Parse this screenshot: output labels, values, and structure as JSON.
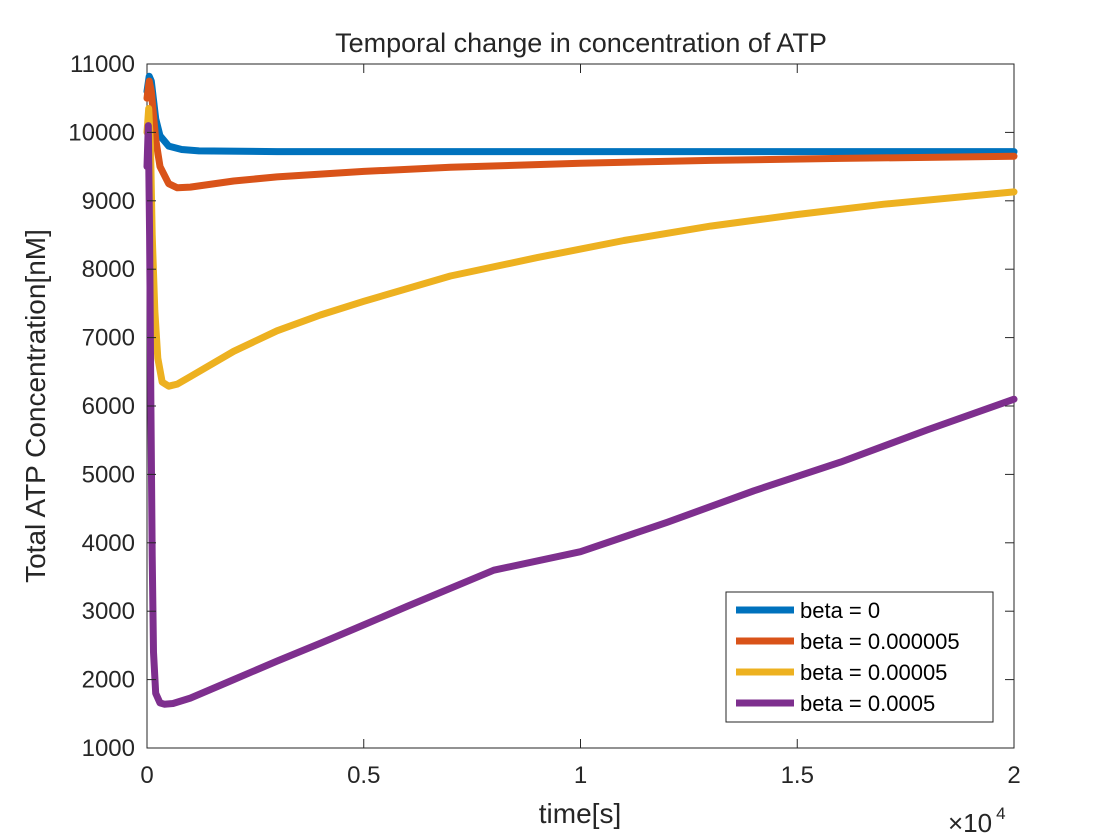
{
  "chart_data": {
    "type": "line",
    "title": "Temporal change in concentration of ATP",
    "xlabel": "time[s]",
    "ylabel": "Total ATP Concentration[nM]",
    "x_multiplier": "×10",
    "x_multiplier_exp": "4",
    "xlim": [
      0,
      2
    ],
    "ylim": [
      1000,
      11000
    ],
    "xticks": [
      0,
      0.5,
      1,
      1.5,
      2
    ],
    "xtick_labels": [
      "0",
      "0.5",
      "1",
      "1.5",
      "2"
    ],
    "yticks": [
      1000,
      2000,
      3000,
      4000,
      5000,
      6000,
      7000,
      8000,
      9000,
      10000,
      11000
    ],
    "ytick_labels": [
      "1000",
      "2000",
      "3000",
      "4000",
      "5000",
      "6000",
      "7000",
      "8000",
      "9000",
      "10000",
      "11000"
    ],
    "grid": false,
    "legend_position": "bottom-right",
    "series": [
      {
        "name": "beta = 0",
        "color": "#0072BD",
        "points": [
          [
            0,
            10600
          ],
          [
            0.005,
            10820
          ],
          [
            0.01,
            10750
          ],
          [
            0.02,
            10200
          ],
          [
            0.03,
            9950
          ],
          [
            0.05,
            9800
          ],
          [
            0.08,
            9750
          ],
          [
            0.12,
            9730
          ],
          [
            0.3,
            9720
          ],
          [
            0.6,
            9720
          ],
          [
            1.0,
            9720
          ],
          [
            1.5,
            9720
          ],
          [
            2.0,
            9720
          ]
        ]
      },
      {
        "name": "beta = 0.000005",
        "color": "#D95319",
        "points": [
          [
            0,
            10500
          ],
          [
            0.005,
            10750
          ],
          [
            0.01,
            10600
          ],
          [
            0.02,
            9900
          ],
          [
            0.03,
            9500
          ],
          [
            0.05,
            9250
          ],
          [
            0.07,
            9190
          ],
          [
            0.1,
            9200
          ],
          [
            0.2,
            9290
          ],
          [
            0.3,
            9350
          ],
          [
            0.5,
            9430
          ],
          [
            0.7,
            9490
          ],
          [
            1.0,
            9550
          ],
          [
            1.3,
            9590
          ],
          [
            1.6,
            9620
          ],
          [
            2.0,
            9650
          ]
        ]
      },
      {
        "name": "beta = 0.00005",
        "color": "#EDB120",
        "points": [
          [
            0,
            10000
          ],
          [
            0.004,
            10350
          ],
          [
            0.008,
            9800
          ],
          [
            0.012,
            8500
          ],
          [
            0.018,
            7400
          ],
          [
            0.025,
            6700
          ],
          [
            0.035,
            6350
          ],
          [
            0.05,
            6290
          ],
          [
            0.07,
            6320
          ],
          [
            0.1,
            6430
          ],
          [
            0.2,
            6800
          ],
          [
            0.3,
            7100
          ],
          [
            0.4,
            7330
          ],
          [
            0.5,
            7530
          ],
          [
            0.7,
            7900
          ],
          [
            0.9,
            8170
          ],
          [
            1.1,
            8420
          ],
          [
            1.3,
            8630
          ],
          [
            1.5,
            8800
          ],
          [
            1.7,
            8950
          ],
          [
            2.0,
            9130
          ]
        ]
      },
      {
        "name": "beta = 0.0005",
        "color": "#7E2F8E",
        "points": [
          [
            0,
            9500
          ],
          [
            0.003,
            10100
          ],
          [
            0.006,
            8500
          ],
          [
            0.009,
            6000
          ],
          [
            0.012,
            3800
          ],
          [
            0.015,
            2400
          ],
          [
            0.02,
            1800
          ],
          [
            0.03,
            1660
          ],
          [
            0.04,
            1640
          ],
          [
            0.06,
            1650
          ],
          [
            0.1,
            1730
          ],
          [
            0.2,
            2000
          ],
          [
            0.3,
            2270
          ],
          [
            0.4,
            2530
          ],
          [
            0.5,
            2800
          ],
          [
            0.6,
            3070
          ],
          [
            0.8,
            3600
          ],
          [
            1.0,
            3870
          ],
          [
            1.2,
            4300
          ],
          [
            1.4,
            4760
          ],
          [
            1.6,
            5180
          ],
          [
            1.8,
            5650
          ],
          [
            2.0,
            6100
          ]
        ]
      }
    ]
  }
}
